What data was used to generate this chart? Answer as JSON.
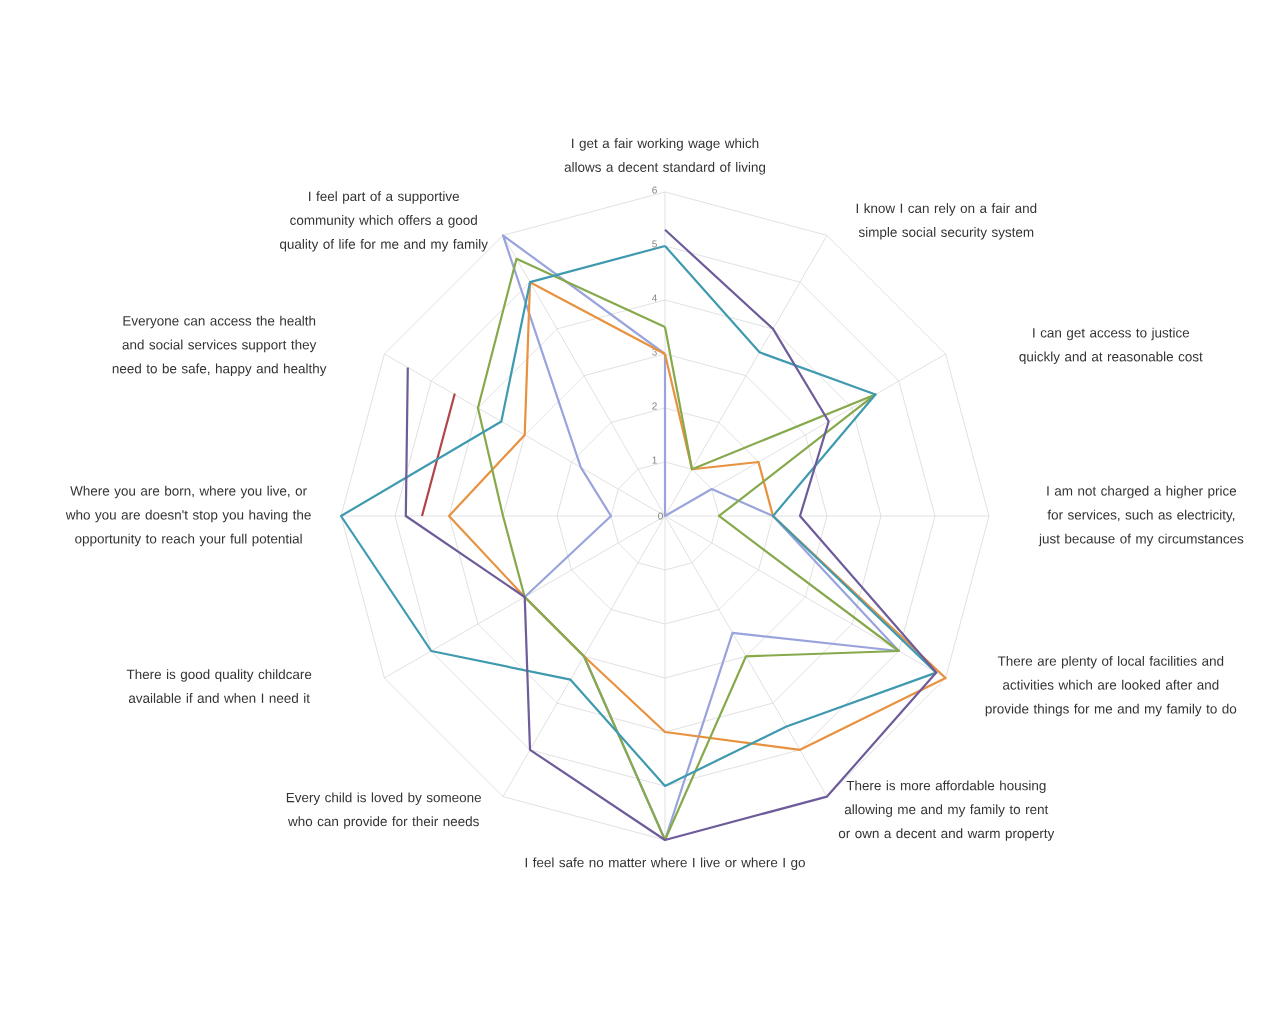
{
  "chart_data": {
    "type": "radar",
    "categories": [
      "I get a fair working wage which allows a decent standard of living",
      "I know I can rely on a fair and simple social security system",
      "I can get access to justice quickly and at reasonable cost",
      "I am not charged a higher price for services, such as electricity, just because of my circumstances",
      "There are plenty of local facilities and activities which are looked after and provide things for me and my family to do",
      "There is more affordable housing allowing me and my family to rent or own a decent and warm property",
      "I feel safe no matter where I live or where I go",
      "Every child is loved by someone who can provide for their needs",
      "There is good quality childcare available if and when I need it",
      "Where you are born, where you live, or who you are doesn't stop you having the opportunity to reach your full potential",
      "Everyone can access the health and social services support they need to be safe, happy and healthy",
      "I feel part of a supportive community which offers a good quality of life for me and my family"
    ],
    "series": [
      {
        "color": "#9aa4dc",
        "values": [
          3,
          0,
          1,
          2,
          5,
          2.5,
          6,
          3,
          3,
          1,
          1.8,
          6
        ]
      },
      {
        "color": "#e8913f",
        "values": [
          3,
          1,
          2,
          2,
          6,
          5,
          4,
          3,
          3,
          4,
          3,
          5
        ]
      },
      {
        "color": "#86a94c",
        "values": [
          3.5,
          1,
          4.5,
          1,
          5,
          3,
          6,
          3,
          3,
          3,
          4,
          5.5
        ]
      },
      {
        "color": "#b0464a",
        "values": [
          null,
          null,
          null,
          null,
          null,
          null,
          null,
          null,
          null,
          4.5,
          4.5,
          null
        ]
      },
      {
        "color": "#3f9ab0",
        "values": [
          5,
          3.5,
          4.5,
          2,
          5.8,
          4.5,
          5,
          3.5,
          5,
          6,
          3.5,
          5
        ]
      },
      {
        "color": "#6e5c9a",
        "values": [
          5.3,
          4,
          3.5,
          2.5,
          5.8,
          6,
          6,
          5,
          3,
          4.8,
          5.5,
          null
        ]
      }
    ],
    "ylim": [
      0,
      6
    ],
    "yticks": [
      0,
      1,
      2,
      3,
      4,
      5,
      6
    ],
    "grid": true
  }
}
